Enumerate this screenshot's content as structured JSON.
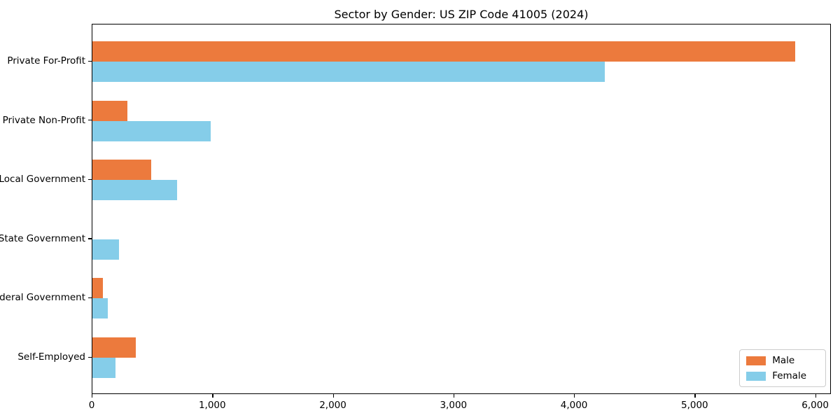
{
  "title": "Sector by Gender: US ZIP Code 41005 (2024)",
  "chart_data": {
    "type": "bar",
    "orientation": "horizontal",
    "title": "Sector by Gender: US ZIP Code 41005 (2024)",
    "xlabel": "",
    "ylabel": "",
    "categories": [
      "Private For-Profit",
      "Private Non-Profit",
      "Local Government",
      "State Government",
      "Federal Government",
      "Self-Employed"
    ],
    "series": [
      {
        "name": "Male",
        "color": "#ec7a3d",
        "values": [
          5830,
          290,
          490,
          0,
          85,
          360
        ]
      },
      {
        "name": "Female",
        "color": "#85cde9",
        "values": [
          4250,
          980,
          700,
          220,
          130,
          190
        ]
      }
    ],
    "xlim": [
      0,
      6130
    ],
    "xticks": [
      0,
      1000,
      2000,
      3000,
      4000,
      5000,
      6000
    ],
    "xtick_labels": [
      "0",
      "1,000",
      "2,000",
      "3,000",
      "4,000",
      "5,000",
      "6,000"
    ],
    "grid": false,
    "legend_position": "lower right"
  },
  "legend": {
    "items": [
      {
        "label": "Male",
        "color": "#ec7a3d"
      },
      {
        "label": "Female",
        "color": "#85cde9"
      }
    ]
  }
}
